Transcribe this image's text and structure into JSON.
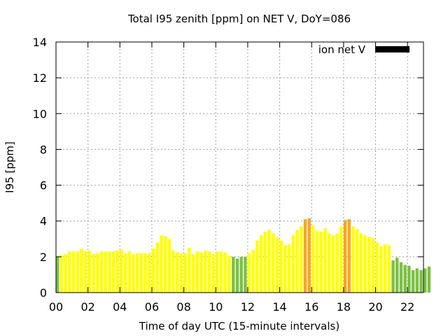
{
  "chart_data": {
    "type": "bar",
    "title": "Total I95 zenith [ppm] on NET V, DoY=086",
    "xlabel": "Time of day UTC (15-minute intervals)",
    "ylabel": "I95 [ppm]",
    "xlim": [
      0,
      23
    ],
    "ylim": [
      0,
      14
    ],
    "x_ticks": [
      {
        "value": 0,
        "label": "00"
      },
      {
        "value": 2,
        "label": "02"
      },
      {
        "value": 4,
        "label": "04"
      },
      {
        "value": 6,
        "label": "06"
      },
      {
        "value": 8,
        "label": "08"
      },
      {
        "value": 10,
        "label": "10"
      },
      {
        "value": 12,
        "label": "12"
      },
      {
        "value": 14,
        "label": "14"
      },
      {
        "value": 16,
        "label": "16"
      },
      {
        "value": 18,
        "label": "18"
      },
      {
        "value": 20,
        "label": "20"
      },
      {
        "value": 22,
        "label": "22"
      }
    ],
    "y_ticks": [
      0,
      2,
      4,
      6,
      8,
      10,
      12,
      14
    ],
    "grid": true,
    "legend": {
      "placement": "top-right",
      "label": "ion net V",
      "color": "#000000"
    },
    "bar_interval_hours": 0.25,
    "colors": {
      "green": "#7cc142",
      "yellow": "#ffff00",
      "orange": "#f5a623"
    },
    "values": [
      2.0,
      2.1,
      2.15,
      2.3,
      2.3,
      2.3,
      2.45,
      2.3,
      2.35,
      2.15,
      2.2,
      2.3,
      2.3,
      2.3,
      2.3,
      2.35,
      2.4,
      2.2,
      2.3,
      2.15,
      2.2,
      2.2,
      2.2,
      2.2,
      2.45,
      2.8,
      3.2,
      3.15,
      3.0,
      2.35,
      2.25,
      2.2,
      2.2,
      2.5,
      2.15,
      2.3,
      2.25,
      2.35,
      2.3,
      2.15,
      2.3,
      2.3,
      2.25,
      2.05,
      2.0,
      1.9,
      2.0,
      2.0,
      2.2,
      2.4,
      2.9,
      3.2,
      3.4,
      3.5,
      3.3,
      3.1,
      2.9,
      2.65,
      2.7,
      3.2,
      3.5,
      3.7,
      4.1,
      4.15,
      3.75,
      3.45,
      3.4,
      3.6,
      3.3,
      3.2,
      3.3,
      3.7,
      4.05,
      4.1,
      3.7,
      3.55,
      3.3,
      3.2,
      3.1,
      3.05,
      2.8,
      2.6,
      2.7,
      2.65,
      1.8,
      1.95,
      1.7,
      1.55,
      1.5,
      1.25,
      1.35,
      1.25,
      1.35,
      1.45
    ],
    "bar_colors": [
      "green",
      "yellow",
      "yellow",
      "yellow",
      "yellow",
      "yellow",
      "yellow",
      "yellow",
      "yellow",
      "yellow",
      "yellow",
      "yellow",
      "yellow",
      "yellow",
      "yellow",
      "yellow",
      "yellow",
      "yellow",
      "yellow",
      "yellow",
      "yellow",
      "yellow",
      "yellow",
      "yellow",
      "yellow",
      "yellow",
      "yellow",
      "yellow",
      "yellow",
      "yellow",
      "yellow",
      "yellow",
      "yellow",
      "yellow",
      "yellow",
      "yellow",
      "yellow",
      "yellow",
      "yellow",
      "yellow",
      "yellow",
      "yellow",
      "yellow",
      "yellow",
      "green",
      "green",
      "green",
      "green",
      "yellow",
      "yellow",
      "yellow",
      "yellow",
      "yellow",
      "yellow",
      "yellow",
      "yellow",
      "yellow",
      "yellow",
      "yellow",
      "yellow",
      "yellow",
      "yellow",
      "orange",
      "orange",
      "yellow",
      "yellow",
      "yellow",
      "yellow",
      "yellow",
      "yellow",
      "yellow",
      "yellow",
      "orange",
      "orange",
      "yellow",
      "yellow",
      "yellow",
      "yellow",
      "yellow",
      "yellow",
      "yellow",
      "yellow",
      "yellow",
      "yellow",
      "green",
      "green",
      "green",
      "green",
      "green",
      "green",
      "green",
      "green",
      "green",
      "green"
    ]
  }
}
